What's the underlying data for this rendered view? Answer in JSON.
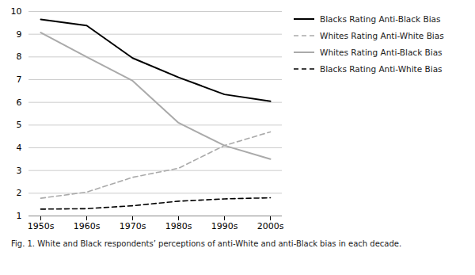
{
  "chart_data": {
    "type": "line",
    "caption": "Fig. 1. White and Black respondents’ perceptions of anti-White and anti-Black bias in each decade.",
    "categories": [
      "1950s",
      "1960s",
      "1970s",
      "1980s",
      "1990s",
      "2000s"
    ],
    "series": [
      {
        "name": "Blacks Rating Anti-Black Bias",
        "color": "#000000",
        "line_style": "solid",
        "values": [
          9.65,
          9.38,
          7.95,
          7.1,
          6.35,
          6.05
        ]
      },
      {
        "name": "Whites Rating Anti-White Bias",
        "color": "#aaaaaa",
        "line_style": "dashed",
        "values": [
          1.78,
          2.05,
          2.7,
          3.1,
          4.1,
          4.7
        ]
      },
      {
        "name": "Whites Rating Anti-Black Bias",
        "color": "#aaaaaa",
        "line_style": "solid",
        "values": [
          9.07,
          8.0,
          6.95,
          5.1,
          4.1,
          3.5
        ]
      },
      {
        "name": "Blacks Rating Anti-White Bias",
        "color": "#000000",
        "line_style": "dashed",
        "values": [
          1.3,
          1.32,
          1.45,
          1.65,
          1.75,
          1.8
        ]
      }
    ],
    "ylim": [
      1,
      10
    ],
    "yticks": [
      1,
      2,
      3,
      4,
      5,
      6,
      7,
      8,
      9,
      10
    ],
    "grid": true,
    "legend": "right"
  }
}
